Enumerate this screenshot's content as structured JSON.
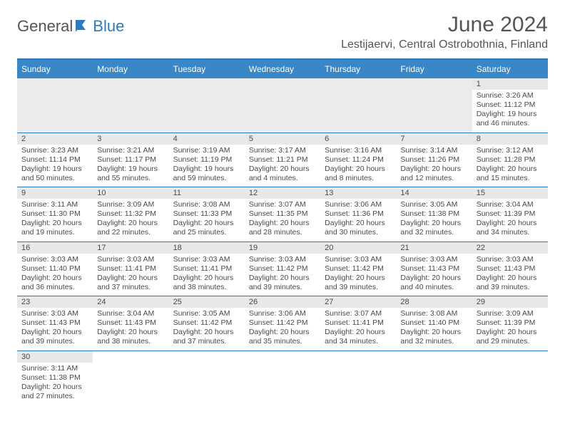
{
  "brand": {
    "part1": "General",
    "part2": "Blue"
  },
  "title": "June 2024",
  "location": "Lestijaervi, Central Ostrobothnia, Finland",
  "dayNames": [
    "Sunday",
    "Monday",
    "Tuesday",
    "Wednesday",
    "Thursday",
    "Friday",
    "Saturday"
  ],
  "colors": {
    "header_bg": "#3a87c7",
    "border": "#2b7bbf",
    "text": "#4a4a4a",
    "daynum_bg": "#e8e8e8",
    "blank_bg": "#ebebeb"
  },
  "weeks": [
    [
      null,
      null,
      null,
      null,
      null,
      null,
      {
        "n": "1",
        "sr": "Sunrise: 3:26 AM",
        "ss": "Sunset: 11:12 PM",
        "d1": "Daylight: 19 hours",
        "d2": "and 46 minutes."
      }
    ],
    [
      {
        "n": "2",
        "sr": "Sunrise: 3:23 AM",
        "ss": "Sunset: 11:14 PM",
        "d1": "Daylight: 19 hours",
        "d2": "and 50 minutes."
      },
      {
        "n": "3",
        "sr": "Sunrise: 3:21 AM",
        "ss": "Sunset: 11:17 PM",
        "d1": "Daylight: 19 hours",
        "d2": "and 55 minutes."
      },
      {
        "n": "4",
        "sr": "Sunrise: 3:19 AM",
        "ss": "Sunset: 11:19 PM",
        "d1": "Daylight: 19 hours",
        "d2": "and 59 minutes."
      },
      {
        "n": "5",
        "sr": "Sunrise: 3:17 AM",
        "ss": "Sunset: 11:21 PM",
        "d1": "Daylight: 20 hours",
        "d2": "and 4 minutes."
      },
      {
        "n": "6",
        "sr": "Sunrise: 3:16 AM",
        "ss": "Sunset: 11:24 PM",
        "d1": "Daylight: 20 hours",
        "d2": "and 8 minutes."
      },
      {
        "n": "7",
        "sr": "Sunrise: 3:14 AM",
        "ss": "Sunset: 11:26 PM",
        "d1": "Daylight: 20 hours",
        "d2": "and 12 minutes."
      },
      {
        "n": "8",
        "sr": "Sunrise: 3:12 AM",
        "ss": "Sunset: 11:28 PM",
        "d1": "Daylight: 20 hours",
        "d2": "and 15 minutes."
      }
    ],
    [
      {
        "n": "9",
        "sr": "Sunrise: 3:11 AM",
        "ss": "Sunset: 11:30 PM",
        "d1": "Daylight: 20 hours",
        "d2": "and 19 minutes."
      },
      {
        "n": "10",
        "sr": "Sunrise: 3:09 AM",
        "ss": "Sunset: 11:32 PM",
        "d1": "Daylight: 20 hours",
        "d2": "and 22 minutes."
      },
      {
        "n": "11",
        "sr": "Sunrise: 3:08 AM",
        "ss": "Sunset: 11:33 PM",
        "d1": "Daylight: 20 hours",
        "d2": "and 25 minutes."
      },
      {
        "n": "12",
        "sr": "Sunrise: 3:07 AM",
        "ss": "Sunset: 11:35 PM",
        "d1": "Daylight: 20 hours",
        "d2": "and 28 minutes."
      },
      {
        "n": "13",
        "sr": "Sunrise: 3:06 AM",
        "ss": "Sunset: 11:36 PM",
        "d1": "Daylight: 20 hours",
        "d2": "and 30 minutes."
      },
      {
        "n": "14",
        "sr": "Sunrise: 3:05 AM",
        "ss": "Sunset: 11:38 PM",
        "d1": "Daylight: 20 hours",
        "d2": "and 32 minutes."
      },
      {
        "n": "15",
        "sr": "Sunrise: 3:04 AM",
        "ss": "Sunset: 11:39 PM",
        "d1": "Daylight: 20 hours",
        "d2": "and 34 minutes."
      }
    ],
    [
      {
        "n": "16",
        "sr": "Sunrise: 3:03 AM",
        "ss": "Sunset: 11:40 PM",
        "d1": "Daylight: 20 hours",
        "d2": "and 36 minutes."
      },
      {
        "n": "17",
        "sr": "Sunrise: 3:03 AM",
        "ss": "Sunset: 11:41 PM",
        "d1": "Daylight: 20 hours",
        "d2": "and 37 minutes."
      },
      {
        "n": "18",
        "sr": "Sunrise: 3:03 AM",
        "ss": "Sunset: 11:41 PM",
        "d1": "Daylight: 20 hours",
        "d2": "and 38 minutes."
      },
      {
        "n": "19",
        "sr": "Sunrise: 3:03 AM",
        "ss": "Sunset: 11:42 PM",
        "d1": "Daylight: 20 hours",
        "d2": "and 39 minutes."
      },
      {
        "n": "20",
        "sr": "Sunrise: 3:03 AM",
        "ss": "Sunset: 11:42 PM",
        "d1": "Daylight: 20 hours",
        "d2": "and 39 minutes."
      },
      {
        "n": "21",
        "sr": "Sunrise: 3:03 AM",
        "ss": "Sunset: 11:43 PM",
        "d1": "Daylight: 20 hours",
        "d2": "and 40 minutes."
      },
      {
        "n": "22",
        "sr": "Sunrise: 3:03 AM",
        "ss": "Sunset: 11:43 PM",
        "d1": "Daylight: 20 hours",
        "d2": "and 39 minutes."
      }
    ],
    [
      {
        "n": "23",
        "sr": "Sunrise: 3:03 AM",
        "ss": "Sunset: 11:43 PM",
        "d1": "Daylight: 20 hours",
        "d2": "and 39 minutes."
      },
      {
        "n": "24",
        "sr": "Sunrise: 3:04 AM",
        "ss": "Sunset: 11:43 PM",
        "d1": "Daylight: 20 hours",
        "d2": "and 38 minutes."
      },
      {
        "n": "25",
        "sr": "Sunrise: 3:05 AM",
        "ss": "Sunset: 11:42 PM",
        "d1": "Daylight: 20 hours",
        "d2": "and 37 minutes."
      },
      {
        "n": "26",
        "sr": "Sunrise: 3:06 AM",
        "ss": "Sunset: 11:42 PM",
        "d1": "Daylight: 20 hours",
        "d2": "and 35 minutes."
      },
      {
        "n": "27",
        "sr": "Sunrise: 3:07 AM",
        "ss": "Sunset: 11:41 PM",
        "d1": "Daylight: 20 hours",
        "d2": "and 34 minutes."
      },
      {
        "n": "28",
        "sr": "Sunrise: 3:08 AM",
        "ss": "Sunset: 11:40 PM",
        "d1": "Daylight: 20 hours",
        "d2": "and 32 minutes."
      },
      {
        "n": "29",
        "sr": "Sunrise: 3:09 AM",
        "ss": "Sunset: 11:39 PM",
        "d1": "Daylight: 20 hours",
        "d2": "and 29 minutes."
      }
    ],
    [
      {
        "n": "30",
        "sr": "Sunrise: 3:11 AM",
        "ss": "Sunset: 11:38 PM",
        "d1": "Daylight: 20 hours",
        "d2": "and 27 minutes."
      },
      null,
      null,
      null,
      null,
      null,
      null
    ]
  ]
}
